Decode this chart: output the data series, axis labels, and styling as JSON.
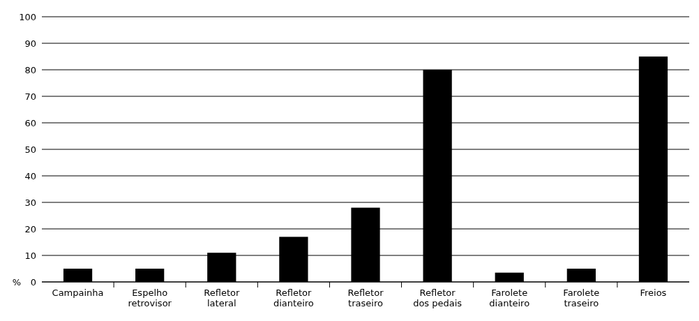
{
  "chart_data": {
    "type": "bar",
    "ylabel": "%",
    "categories": [
      "Campainha",
      "Espelho retrovisor",
      "Refletor lateral",
      "Refletor dianteiro",
      "Refletor traseiro",
      "Refletor dos pedais",
      "Farolete dianteiro",
      "Farolete traseiro",
      "Freios"
    ],
    "values": [
      5,
      5,
      11,
      17,
      28,
      80,
      3.5,
      5,
      85
    ],
    "color": "#000000",
    "ylim": [
      0,
      100
    ],
    "yticks": [
      0,
      10,
      20,
      30,
      40,
      50,
      60,
      70,
      80,
      90,
      100
    ],
    "grid": "y"
  }
}
